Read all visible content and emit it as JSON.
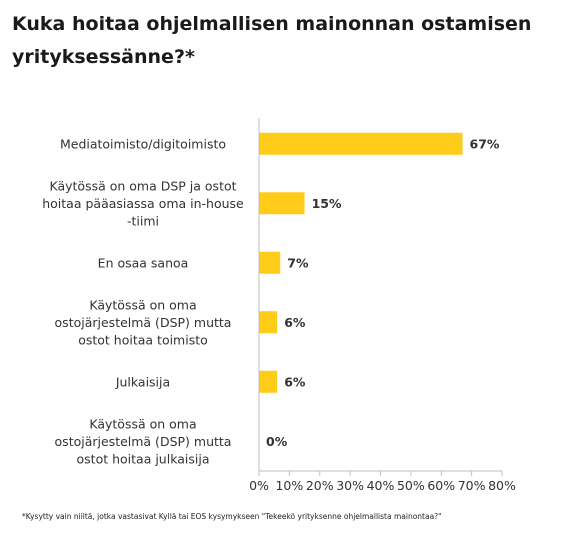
{
  "title": "Kuka hoitaa ohjelmallisen mainonnan ostamisen yrityksessänne?*",
  "footnote": "*Kysytty vain niiltä, jotka vastasivat Kyllä tai EOS kysymykseen \"Tekeekö yrityksenne ohjelmallista mainontaa?\"",
  "colors": {
    "bar": "#FFCC1A",
    "axis": "#BFBFBF",
    "text": "#333333"
  },
  "chart_data": {
    "type": "bar",
    "orientation": "horizontal",
    "categories": [
      [
        "Mediatoimisto/digitoimisto"
      ],
      [
        "Käytössä on oma DSP ja ostot",
        "hoitaa pääasiassa oma in-house",
        "-tiimi"
      ],
      [
        "En osaa sanoa"
      ],
      [
        "Käytössä on oma",
        "ostojärjestelmä (DSP) mutta",
        "ostot hoitaa toimisto"
      ],
      [
        "Julkaisija"
      ],
      [
        "Käytössä on oma",
        "ostojärjestelmä (DSP) mutta",
        "ostot hoitaa julkaisija"
      ]
    ],
    "values": [
      67,
      15,
      7,
      6,
      6,
      0
    ],
    "value_labels": [
      "67%",
      "15%",
      "7%",
      "6%",
      "6%",
      "0%"
    ],
    "xlim": [
      0,
      80
    ],
    "xticks": [
      "0%",
      "10%",
      "20%",
      "30%",
      "40%",
      "50%",
      "60%",
      "70%",
      "80%"
    ],
    "grid": false,
    "legend": "none"
  }
}
